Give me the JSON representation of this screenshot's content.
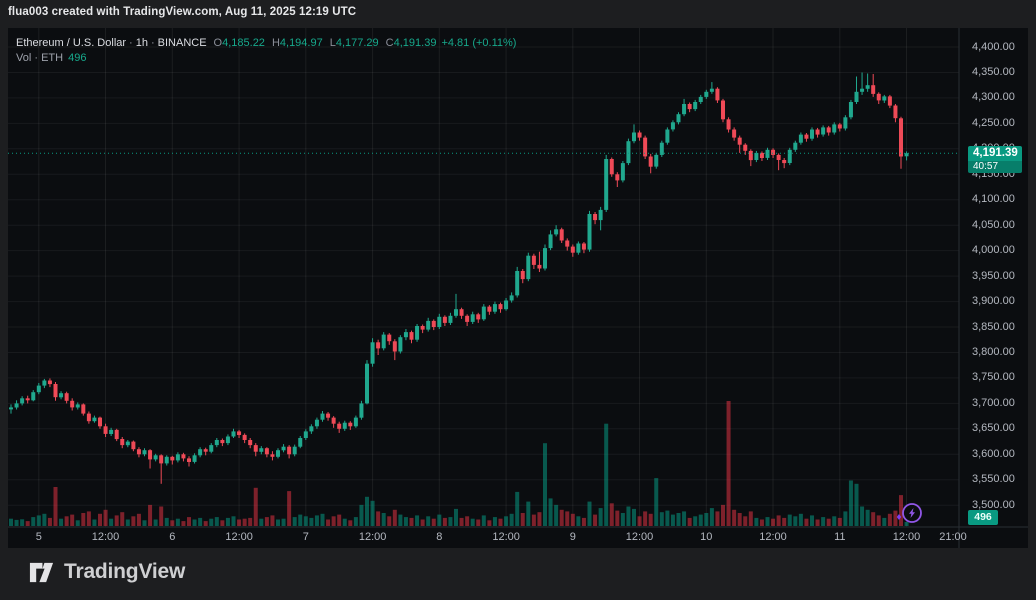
{
  "attribution": "flua003 created with TradingView.com, Aug 11, 2025 12:19 UTC",
  "legend": {
    "symbol": "Ethereum / U.S. Dollar",
    "separator": "·",
    "interval": "1h",
    "exchange": "BINANCE",
    "ohlc": {
      "o_label": "O",
      "o": "4,185.22",
      "h_label": "H",
      "h": "4,194.97",
      "l_label": "L",
      "l": "4,177.29",
      "c_label": "C",
      "c": "4,191.39",
      "change": "+4.81 (+0.11%)"
    },
    "volume": {
      "label": "Vol · ETH",
      "value": "496"
    }
  },
  "price_scale": {
    "ticks": [
      "4,400.00",
      "4,350.00",
      "4,300.00",
      "4,250.00",
      "4,200.00",
      "4,150.00",
      "4,100.00",
      "4,050.00",
      "4,000.00",
      "3,950.00",
      "3,900.00",
      "3,850.00",
      "3,800.00",
      "3,750.00",
      "3,700.00",
      "3,650.00",
      "3,600.00",
      "3,550.00",
      "3,500.00"
    ],
    "last": {
      "price": "4,191.39",
      "countdown": "40:57"
    }
  },
  "time_scale": {
    "ticks": [
      "5",
      "12:00",
      "6",
      "12:00",
      "7",
      "12:00",
      "8",
      "12:00",
      "9",
      "12:00",
      "10",
      "12:00",
      "11",
      "12:00",
      "21:00"
    ]
  },
  "volume_badge": {
    "value": "496"
  },
  "logo": {
    "text": "TradingView"
  },
  "colors": {
    "up": "#20a88e",
    "down": "#ef4a57",
    "vol_up": "#089981",
    "vol_down": "#f23645",
    "badge": "#099a82",
    "accent_text": "#17a98c",
    "axis_text": "#b4b8c0",
    "background": "#0b0d10",
    "page": "#1d1e20",
    "boost_purple": "#9157e8"
  },
  "chart_data": {
    "type": "candlestick",
    "title": "Ethereum / U.S. Dollar · 1h · BINANCE",
    "symbol": "ETH/USD",
    "exchange": "BINANCE",
    "interval": "1h",
    "last_close": 4191.39,
    "last_change": "+4.81 (+0.11%)",
    "current_candle": {
      "open": 4185.22,
      "high": 4194.97,
      "low": 4177.29,
      "close": 4191.39,
      "volume_eth": 496
    },
    "price_axis": {
      "min": 3500,
      "max": 4400,
      "tick_step": 50,
      "grid": true
    },
    "time_axis_labels": [
      "5",
      "12:00",
      "6",
      "12:00",
      "7",
      "12:00",
      "8",
      "12:00",
      "9",
      "12:00",
      "10",
      "12:00",
      "11",
      "12:00",
      "21:00"
    ],
    "volume_series_label": "Vol · ETH",
    "candles_format": [
      "open",
      "high",
      "low",
      "close",
      "volume"
    ],
    "candles": [
      [
        3688,
        3698,
        3680,
        3692,
        900
      ],
      [
        3692,
        3706,
        3688,
        3700,
        750
      ],
      [
        3700,
        3714,
        3696,
        3710,
        820
      ],
      [
        3710,
        3715,
        3700,
        3706,
        600
      ],
      [
        3706,
        3726,
        3704,
        3722,
        1100
      ],
      [
        3722,
        3740,
        3718,
        3735,
        1300
      ],
      [
        3735,
        3748,
        3730,
        3745,
        1500
      ],
      [
        3745,
        3749,
        3732,
        3738,
        1000
      ],
      [
        3738,
        3742,
        3705,
        3712,
        4800
      ],
      [
        3712,
        3724,
        3708,
        3720,
        900
      ],
      [
        3720,
        3723,
        3700,
        3705,
        1200
      ],
      [
        3705,
        3710,
        3686,
        3692,
        1400
      ],
      [
        3692,
        3702,
        3688,
        3698,
        700
      ],
      [
        3698,
        3700,
        3676,
        3680,
        1600
      ],
      [
        3680,
        3684,
        3660,
        3665,
        1800
      ],
      [
        3665,
        3676,
        3662,
        3672,
        800
      ],
      [
        3672,
        3674,
        3650,
        3655,
        1500
      ],
      [
        3655,
        3660,
        3634,
        3640,
        2000
      ],
      [
        3640,
        3652,
        3636,
        3648,
        900
      ],
      [
        3648,
        3650,
        3626,
        3630,
        1300
      ],
      [
        3630,
        3634,
        3612,
        3618,
        1700
      ],
      [
        3618,
        3628,
        3614,
        3625,
        800
      ],
      [
        3625,
        3627,
        3606,
        3610,
        1200
      ],
      [
        3610,
        3614,
        3594,
        3600,
        1500
      ],
      [
        3600,
        3612,
        3596,
        3608,
        700
      ],
      [
        3608,
        3610,
        3572,
        3590,
        2600
      ],
      [
        3590,
        3601,
        3586,
        3598,
        800
      ],
      [
        3598,
        3600,
        3542,
        3582,
        2400
      ],
      [
        3582,
        3598,
        3578,
        3595,
        1000
      ],
      [
        3595,
        3597,
        3580,
        3588,
        700
      ],
      [
        3588,
        3604,
        3584,
        3600,
        900
      ],
      [
        3600,
        3603,
        3586,
        3592,
        600
      ],
      [
        3592,
        3596,
        3576,
        3585,
        1100
      ],
      [
        3585,
        3602,
        3582,
        3598,
        800
      ],
      [
        3598,
        3614,
        3594,
        3610,
        1000
      ],
      [
        3610,
        3613,
        3598,
        3605,
        600
      ],
      [
        3605,
        3622,
        3602,
        3618,
        900
      ],
      [
        3618,
        3632,
        3614,
        3628,
        1100
      ],
      [
        3628,
        3631,
        3616,
        3622,
        700
      ],
      [
        3622,
        3639,
        3618,
        3635,
        1000
      ],
      [
        3635,
        3650,
        3632,
        3645,
        1200
      ],
      [
        3645,
        3648,
        3632,
        3638,
        800
      ],
      [
        3638,
        3641,
        3622,
        3628,
        900
      ],
      [
        3628,
        3632,
        3612,
        3618,
        1000
      ],
      [
        3618,
        3622,
        3596,
        3605,
        4700
      ],
      [
        3605,
        3616,
        3600,
        3612,
        900
      ],
      [
        3612,
        3614,
        3594,
        3600,
        1100
      ],
      [
        3600,
        3606,
        3588,
        3595,
        1300
      ],
      [
        3595,
        3612,
        3592,
        3608,
        800
      ],
      [
        3608,
        3620,
        3604,
        3615,
        900
      ],
      [
        3615,
        3618,
        3592,
        3600,
        4300
      ],
      [
        3600,
        3619,
        3596,
        3615,
        1100
      ],
      [
        3615,
        3636,
        3612,
        3632,
        1400
      ],
      [
        3632,
        3649,
        3628,
        3645,
        1200
      ],
      [
        3645,
        3659,
        3640,
        3655,
        1000
      ],
      [
        3655,
        3672,
        3650,
        3668,
        1300
      ],
      [
        3668,
        3685,
        3664,
        3680,
        1500
      ],
      [
        3680,
        3683,
        3666,
        3672,
        800
      ],
      [
        3672,
        3675,
        3652,
        3660,
        1200
      ],
      [
        3660,
        3664,
        3642,
        3650,
        1400
      ],
      [
        3650,
        3666,
        3646,
        3662,
        900
      ],
      [
        3662,
        3665,
        3648,
        3655,
        700
      ],
      [
        3655,
        3676,
        3652,
        3672,
        1100
      ],
      [
        3672,
        3705,
        3668,
        3700,
        2600
      ],
      [
        3700,
        3785,
        3698,
        3778,
        3600
      ],
      [
        3778,
        3828,
        3772,
        3820,
        3100
      ],
      [
        3820,
        3825,
        3795,
        3808,
        1800
      ],
      [
        3808,
        3840,
        3804,
        3835,
        1600
      ],
      [
        3835,
        3838,
        3815,
        3822,
        1200
      ],
      [
        3822,
        3826,
        3785,
        3802,
        2000
      ],
      [
        3802,
        3834,
        3798,
        3830,
        1400
      ],
      [
        3830,
        3846,
        3824,
        3840,
        1100
      ],
      [
        3840,
        3843,
        3818,
        3825,
        1000
      ],
      [
        3825,
        3856,
        3821,
        3852,
        1300
      ],
      [
        3852,
        3855,
        3838,
        3845,
        800
      ],
      [
        3845,
        3868,
        3841,
        3862,
        1200
      ],
      [
        3862,
        3865,
        3844,
        3850,
        900
      ],
      [
        3850,
        3876,
        3846,
        3870,
        1400
      ],
      [
        3870,
        3873,
        3852,
        3858,
        1000
      ],
      [
        3858,
        3878,
        3854,
        3872,
        1100
      ],
      [
        3872,
        3915,
        3868,
        3885,
        2100
      ],
      [
        3885,
        3888,
        3866,
        3872,
        1000
      ],
      [
        3872,
        3875,
        3852,
        3860,
        1200
      ],
      [
        3860,
        3880,
        3856,
        3875,
        900
      ],
      [
        3875,
        3878,
        3858,
        3865,
        800
      ],
      [
        3865,
        3895,
        3862,
        3890,
        1300
      ],
      [
        3890,
        3893,
        3874,
        3880,
        700
      ],
      [
        3880,
        3900,
        3876,
        3895,
        1100
      ],
      [
        3895,
        3898,
        3878,
        3885,
        900
      ],
      [
        3885,
        3907,
        3882,
        3902,
        1200
      ],
      [
        3902,
        3918,
        3898,
        3912,
        1500
      ],
      [
        3912,
        3968,
        3908,
        3960,
        4200
      ],
      [
        3960,
        3964,
        3936,
        3944,
        1600
      ],
      [
        3944,
        3996,
        3940,
        3990,
        3000
      ],
      [
        3990,
        3994,
        3964,
        3972,
        1400
      ],
      [
        3972,
        3998,
        3958,
        3965,
        1700
      ],
      [
        3965,
        4012,
        3961,
        4005,
        10200
      ],
      [
        4005,
        4040,
        4001,
        4032,
        3400
      ],
      [
        4032,
        4050,
        4028,
        4042,
        2600
      ],
      [
        4042,
        4045,
        4015,
        4020,
        2000
      ],
      [
        4020,
        4024,
        4000,
        4008,
        1800
      ],
      [
        4008,
        4012,
        3988,
        3996,
        1500
      ],
      [
        3996,
        4018,
        3992,
        4014,
        1200
      ],
      [
        4014,
        4017,
        3995,
        4002,
        1000
      ],
      [
        4002,
        4078,
        3998,
        4072,
        3000
      ],
      [
        4072,
        4076,
        4052,
        4060,
        1400
      ],
      [
        4060,
        4086,
        4040,
        4080,
        2200
      ],
      [
        4080,
        4188,
        4076,
        4180,
        12600
      ],
      [
        4180,
        4183,
        4145,
        4150,
        2800
      ],
      [
        4150,
        4154,
        4125,
        4138,
        1900
      ],
      [
        4138,
        4176,
        4134,
        4172,
        1600
      ],
      [
        4172,
        4220,
        4168,
        4215,
        2400
      ],
      [
        4215,
        4248,
        4211,
        4232,
        2100
      ],
      [
        4232,
        4236,
        4216,
        4222,
        1200
      ],
      [
        4222,
        4226,
        4180,
        4185,
        1800
      ],
      [
        4185,
        4190,
        4152,
        4165,
        1500
      ],
      [
        4165,
        4192,
        4161,
        4188,
        5900
      ],
      [
        4188,
        4216,
        4184,
        4212,
        1700
      ],
      [
        4212,
        4242,
        4208,
        4238,
        1900
      ],
      [
        4238,
        4256,
        4234,
        4252,
        1400
      ],
      [
        4252,
        4272,
        4248,
        4268,
        1600
      ],
      [
        4268,
        4298,
        4264,
        4288,
        1800
      ],
      [
        4288,
        4291,
        4272,
        4278,
        1000
      ],
      [
        4278,
        4296,
        4274,
        4292,
        1200
      ],
      [
        4292,
        4306,
        4288,
        4302,
        1400
      ],
      [
        4302,
        4316,
        4298,
        4312,
        1600
      ],
      [
        4312,
        4331,
        4308,
        4318,
        2200
      ],
      [
        4318,
        4321,
        4290,
        4295,
        1800
      ],
      [
        4295,
        4298,
        4252,
        4258,
        2600
      ],
      [
        4258,
        4262,
        4232,
        4238,
        15400
      ],
      [
        4238,
        4242,
        4216,
        4222,
        2000
      ],
      [
        4222,
        4226,
        4192,
        4208,
        1600
      ],
      [
        4208,
        4211,
        4188,
        4196,
        1200
      ],
      [
        4196,
        4199,
        4166,
        4178,
        1800
      ],
      [
        4178,
        4196,
        4174,
        4192,
        1000
      ],
      [
        4192,
        4195,
        4176,
        4182,
        800
      ],
      [
        4182,
        4202,
        4178,
        4198,
        1100
      ],
      [
        4198,
        4201,
        4182,
        4188,
        900
      ],
      [
        4188,
        4191,
        4158,
        4178,
        1300
      ],
      [
        4178,
        4182,
        4162,
        4172,
        1000
      ],
      [
        4172,
        4202,
        4168,
        4198,
        1400
      ],
      [
        4198,
        4216,
        4194,
        4212,
        1200
      ],
      [
        4212,
        4232,
        4208,
        4228,
        1500
      ],
      [
        4228,
        4231,
        4214,
        4220,
        900
      ],
      [
        4220,
        4242,
        4216,
        4238,
        1300
      ],
      [
        4238,
        4241,
        4222,
        4228,
        800
      ],
      [
        4228,
        4246,
        4224,
        4242,
        1100
      ],
      [
        4242,
        4245,
        4226,
        4232,
        900
      ],
      [
        4232,
        4252,
        4228,
        4248,
        1200
      ],
      [
        4248,
        4251,
        4234,
        4240,
        1000
      ],
      [
        4240,
        4266,
        4236,
        4262,
        1800
      ],
      [
        4262,
        4296,
        4258,
        4292,
        5600
      ],
      [
        4292,
        4342,
        4288,
        4312,
        5200
      ],
      [
        4312,
        4350,
        4306,
        4318,
        2400
      ],
      [
        4318,
        4348,
        4312,
        4325,
        2000
      ],
      [
        4325,
        4347,
        4302,
        4308,
        1700
      ],
      [
        4308,
        4311,
        4288,
        4295,
        1300
      ],
      [
        4295,
        4306,
        4290,
        4303,
        1000
      ],
      [
        4303,
        4306,
        4280,
        4285,
        1500
      ],
      [
        4285,
        4288,
        4252,
        4260,
        1900
      ],
      [
        4260,
        4263,
        4161,
        4185,
        3800
      ],
      [
        4185.22,
        4194.97,
        4177.29,
        4191.39,
        496
      ]
    ]
  }
}
